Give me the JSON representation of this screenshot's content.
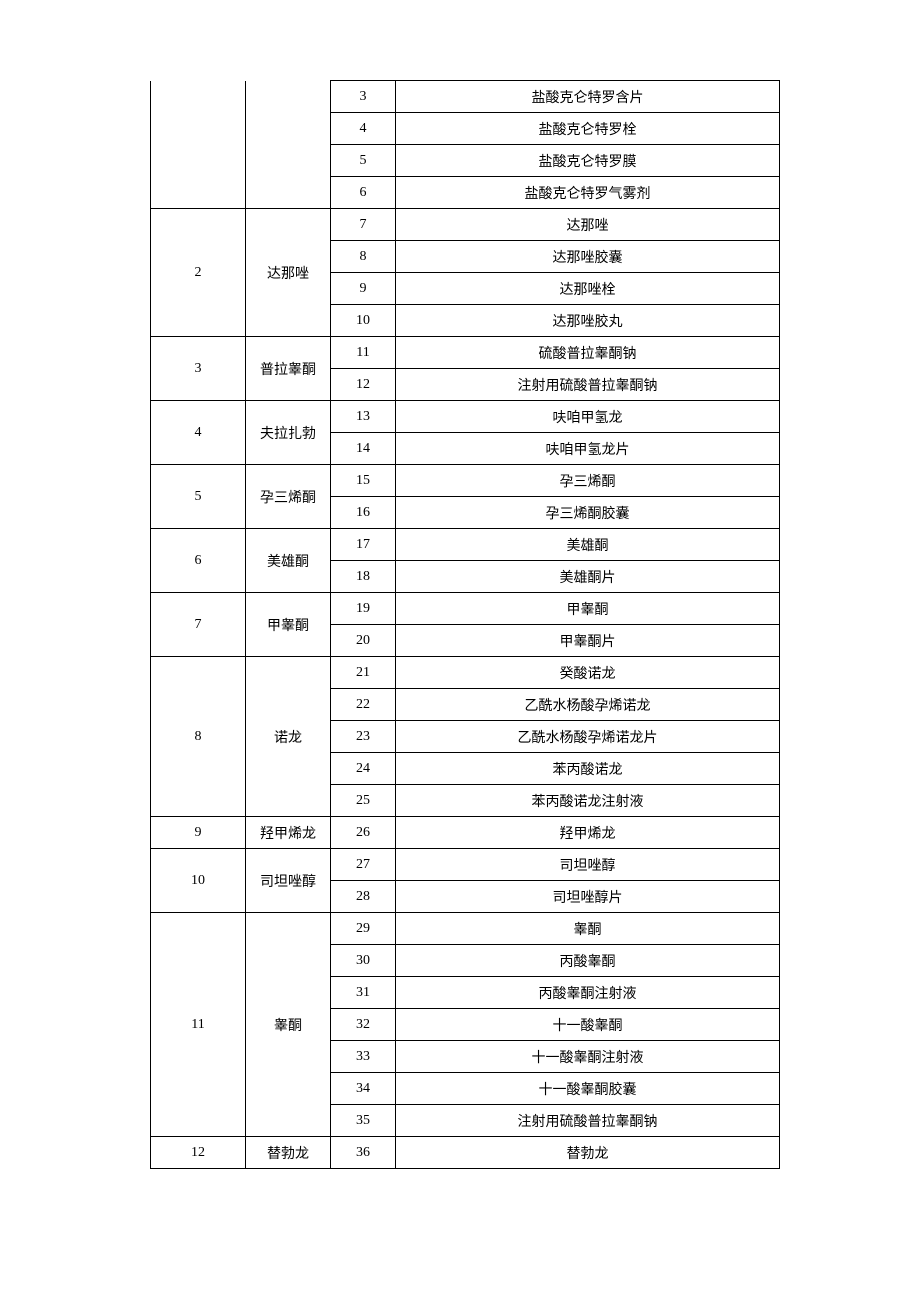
{
  "table": {
    "groups": [
      {
        "group_no": "",
        "category": "",
        "continuation": true,
        "items": [
          {
            "no": "3",
            "name": "盐酸克仑特罗含片"
          },
          {
            "no": "4",
            "name": "盐酸克仑特罗栓"
          },
          {
            "no": "5",
            "name": "盐酸克仑特罗膜"
          },
          {
            "no": "6",
            "name": "盐酸克仑特罗气雾剂"
          }
        ]
      },
      {
        "group_no": "2",
        "category": "达那唑",
        "items": [
          {
            "no": "7",
            "name": "达那唑"
          },
          {
            "no": "8",
            "name": "达那唑胶囊"
          },
          {
            "no": "9",
            "name": "达那唑栓"
          },
          {
            "no": "10",
            "name": "达那唑胶丸"
          }
        ]
      },
      {
        "group_no": "3",
        "category": "普拉睾酮",
        "items": [
          {
            "no": "11",
            "name": "硫酸普拉睾酮钠"
          },
          {
            "no": "12",
            "name": "注射用硫酸普拉睾酮钠"
          }
        ]
      },
      {
        "group_no": "4",
        "category": "夫拉扎勃",
        "items": [
          {
            "no": "13",
            "name": "呋咱甲氢龙"
          },
          {
            "no": "14",
            "name": "呋咱甲氢龙片"
          }
        ]
      },
      {
        "group_no": "5",
        "category": "孕三烯酮",
        "items": [
          {
            "no": "15",
            "name": "孕三烯酮"
          },
          {
            "no": "16",
            "name": "孕三烯酮胶囊"
          }
        ]
      },
      {
        "group_no": "6",
        "category": "美雄酮",
        "items": [
          {
            "no": "17",
            "name": "美雄酮"
          },
          {
            "no": "18",
            "name": "美雄酮片"
          }
        ]
      },
      {
        "group_no": "7",
        "category": "甲睾酮",
        "items": [
          {
            "no": "19",
            "name": "甲睾酮"
          },
          {
            "no": "20",
            "name": "甲睾酮片"
          }
        ]
      },
      {
        "group_no": "8",
        "category": "诺龙",
        "items": [
          {
            "no": "21",
            "name": "癸酸诺龙"
          },
          {
            "no": "22",
            "name": "乙酰水杨酸孕烯诺龙"
          },
          {
            "no": "23",
            "name": "乙酰水杨酸孕烯诺龙片"
          },
          {
            "no": "24",
            "name": "苯丙酸诺龙"
          },
          {
            "no": "25",
            "name": "苯丙酸诺龙注射液"
          }
        ]
      },
      {
        "group_no": "9",
        "category": "羟甲烯龙",
        "items": [
          {
            "no": "26",
            "name": "羟甲烯龙"
          }
        ]
      },
      {
        "group_no": "10",
        "category": "司坦唑醇",
        "items": [
          {
            "no": "27",
            "name": "司坦唑醇"
          },
          {
            "no": "28",
            "name": "司坦唑醇片"
          }
        ]
      },
      {
        "group_no": "11",
        "category": "睾酮",
        "items": [
          {
            "no": "29",
            "name": "睾酮"
          },
          {
            "no": "30",
            "name": "丙酸睾酮"
          },
          {
            "no": "31",
            "name": "丙酸睾酮注射液"
          },
          {
            "no": "32",
            "name": "十一酸睾酮"
          },
          {
            "no": "33",
            "name": "十一酸睾酮注射液"
          },
          {
            "no": "34",
            "name": "十一酸睾酮胶囊"
          },
          {
            "no": "35",
            "name": "注射用硫酸普拉睾酮钠"
          }
        ]
      },
      {
        "group_no": "12",
        "category": "替勃龙",
        "items": [
          {
            "no": "36",
            "name": "替勃龙"
          }
        ]
      }
    ]
  }
}
